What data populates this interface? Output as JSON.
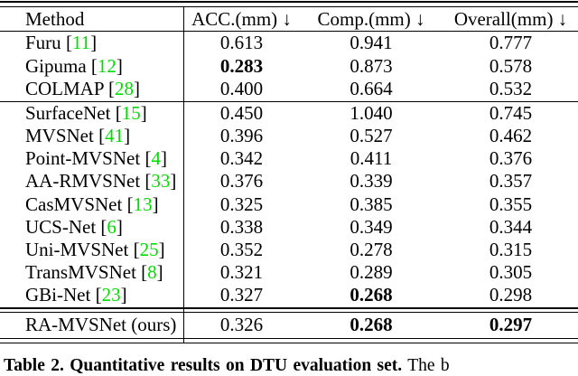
{
  "colors": {
    "citation_green": "#00DE00",
    "rule_black": "#000000"
  },
  "table": {
    "header": {
      "method": "Method",
      "acc": "ACC.(mm) ↓",
      "comp": "Comp.(mm) ↓",
      "overall": "Overall(mm) ↓"
    },
    "groups": [
      {
        "rows": [
          {
            "method": "Furu",
            "cite": "11",
            "acc": "0.613",
            "comp": "0.941",
            "overall": "0.777",
            "bold": []
          },
          {
            "method": "Gipuma",
            "cite": "12",
            "acc": "0.283",
            "comp": "0.873",
            "overall": "0.578",
            "bold": [
              "acc"
            ]
          },
          {
            "method": "COLMAP",
            "cite": "28",
            "acc": "0.400",
            "comp": "0.664",
            "overall": "0.532",
            "bold": []
          }
        ]
      },
      {
        "rows": [
          {
            "method": "SurfaceNet",
            "cite": "15",
            "acc": "0.450",
            "comp": "1.040",
            "overall": "0.745",
            "bold": []
          },
          {
            "method": "MVSNet",
            "cite": "41",
            "acc": "0.396",
            "comp": "0.527",
            "overall": "0.462",
            "bold": []
          },
          {
            "method": "Point-MVSNet",
            "cite": "4",
            "acc": "0.342",
            "comp": "0.411",
            "overall": "0.376",
            "bold": []
          },
          {
            "method": "AA-RMVSNet",
            "cite": "33",
            "acc": "0.376",
            "comp": "0.339",
            "overall": "0.357",
            "bold": []
          },
          {
            "method": "CasMVSNet",
            "cite": "13",
            "acc": "0.325",
            "comp": "0.385",
            "overall": "0.355",
            "bold": []
          },
          {
            "method": "UCS-Net",
            "cite": "6",
            "acc": "0.338",
            "comp": "0.349",
            "overall": "0.344",
            "bold": []
          },
          {
            "method": "Uni-MVSNet",
            "cite": "25",
            "acc": "0.352",
            "comp": "0.278",
            "overall": "0.315",
            "bold": []
          },
          {
            "method": "TransMVSNet",
            "cite": "8",
            "acc": "0.321",
            "comp": "0.289",
            "overall": "0.305",
            "bold": []
          },
          {
            "method": "GBi-Net",
            "cite": "23",
            "acc": "0.327",
            "comp": "0.268",
            "overall": "0.298",
            "bold": [
              "comp"
            ]
          }
        ]
      },
      {
        "rows": [
          {
            "method": "RA-MVSNet (ours)",
            "cite": null,
            "acc": "0.326",
            "comp": "0.268",
            "overall": "0.297",
            "bold": [
              "comp",
              "overall"
            ]
          }
        ]
      }
    ]
  },
  "caption": {
    "bold_part": "Table 2. Quantitative results on DTU evaluation set.",
    "regular_part": " The b"
  }
}
